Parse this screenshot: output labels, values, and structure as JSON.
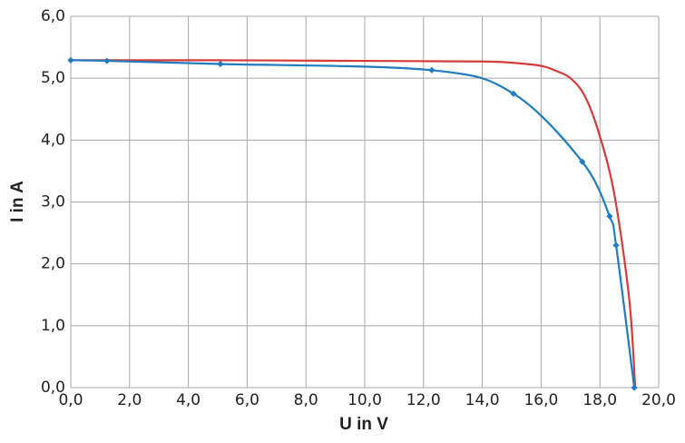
{
  "chart_data": {
    "type": "line",
    "x_label": "U in V",
    "y_label": "I in A",
    "series": [
      {
        "color": "#d43b3b",
        "marker": "none",
        "x": [
          0,
          5,
          10,
          14,
          15,
          16,
          16.5,
          17,
          17.5,
          18,
          18.5,
          19,
          19.2
        ],
        "values": [
          5.29,
          5.29,
          5.28,
          5.27,
          5.25,
          5.2,
          5.12,
          5.0,
          4.7,
          4.06,
          3.1,
          1.42,
          0
        ]
      },
      {
        "color": "#1f7cbf",
        "marker": "diamond",
        "x": [
          0,
          1.23,
          5.09,
          12.28,
          15.06,
          17.4,
          18.33,
          18.55,
          19.17
        ],
        "values": [
          5.29,
          5.28,
          5.23,
          5.13,
          4.75,
          3.65,
          2.77,
          2.3,
          0
        ]
      }
    ],
    "xlim": [
      0,
      20
    ],
    "ylim": [
      0,
      6
    ],
    "xticks": [
      {
        "value": 0,
        "label": "0,0"
      },
      {
        "value": 2,
        "label": "2,0"
      },
      {
        "value": 4,
        "label": "4,0"
      },
      {
        "value": 6,
        "label": "6,0"
      },
      {
        "value": 8,
        "label": "8,0"
      },
      {
        "value": 10,
        "label": "10,0"
      },
      {
        "value": 12,
        "label": "12,0"
      },
      {
        "value": 14,
        "label": "14,0"
      },
      {
        "value": 16,
        "label": "16,0"
      },
      {
        "value": 18,
        "label": "18,0"
      },
      {
        "value": 20,
        "label": "20,0"
      }
    ],
    "yticks": [
      {
        "value": 0,
        "label": "0,0"
      },
      {
        "value": 1,
        "label": "1,0"
      },
      {
        "value": 2,
        "label": "2,0"
      },
      {
        "value": 3,
        "label": "3,0"
      },
      {
        "value": 4,
        "label": "4,0"
      },
      {
        "value": 5,
        "label": "5,0"
      },
      {
        "value": 6,
        "label": "6,0"
      }
    ],
    "grid": true
  }
}
